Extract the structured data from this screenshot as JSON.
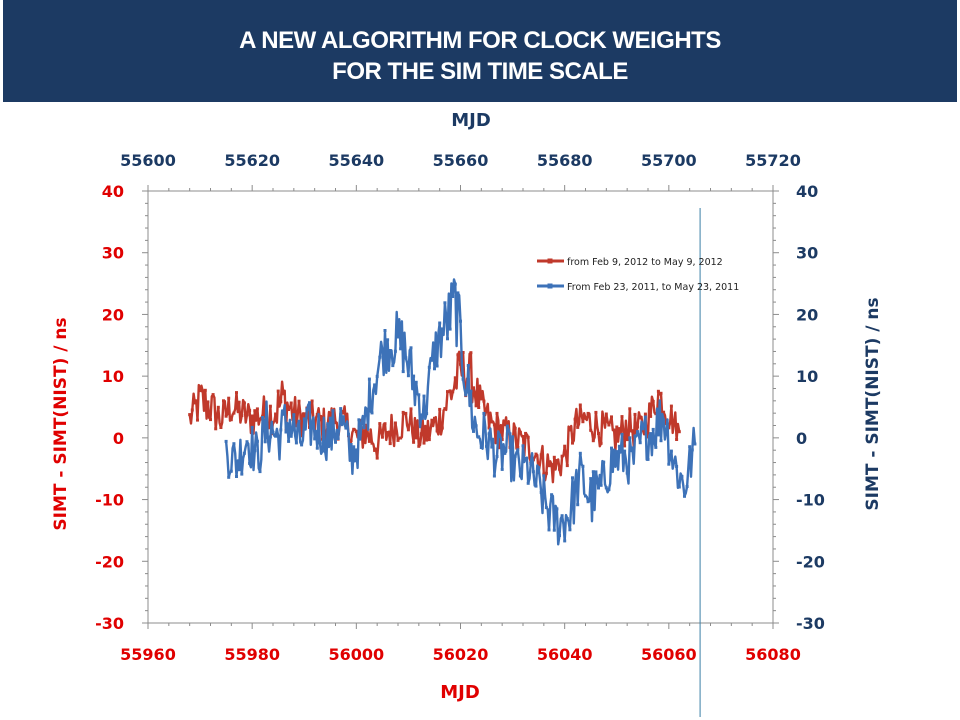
{
  "title": {
    "line1": "A NEW ALGORITHM FOR CLOCK WEIGHTS",
    "line2": "FOR THE SIM TIME SCALE",
    "background": "#1c3a63"
  },
  "chart_data": {
    "type": "line",
    "colors": {
      "red": "#c0392b",
      "blue": "#3d72b8",
      "left_axis_text": "#e00000",
      "right_axis_text": "#1c3a63",
      "cursor_line": "#3b7fa6"
    },
    "bottom_xaxis": {
      "label": "MJD",
      "range": [
        55960,
        56080
      ],
      "ticks": [
        "55960",
        "55980",
        "56000",
        "56020",
        "56040",
        "56060",
        "56080"
      ]
    },
    "top_xaxis": {
      "label": "MJD",
      "range": [
        55600,
        55720
      ],
      "ticks": [
        "55600",
        "55620",
        "55640",
        "55660",
        "55680",
        "55700",
        "55720"
      ]
    },
    "left_yaxis": {
      "label": "SIMT - SIMT(NIST) / ns",
      "range": [
        -30,
        40
      ],
      "ticks": [
        "40",
        "30",
        "20",
        "10",
        "0",
        "-10",
        "-20",
        "-30"
      ]
    },
    "right_yaxis": {
      "label": "SIMT - SIMT(NIST) / ns",
      "range": [
        -30,
        40
      ],
      "ticks": [
        "40",
        "30",
        "20",
        "10",
        "0",
        "-10",
        "-20",
        "-30"
      ]
    },
    "cursor_line_x_bottom": 56066,
    "legend": {
      "placement": "top-right"
    },
    "series": [
      {
        "name": "from Feb 9, 2012 to May 9, 2012",
        "axis": "bottom",
        "color": "#c0392b",
        "x": [
          55968,
          55970,
          55972,
          55974,
          55976,
          55978,
          55980,
          55982,
          55984,
          55986,
          55988,
          55990,
          55992,
          55994,
          55996,
          55998,
          56000,
          56002,
          56004,
          56006,
          56008,
          56010,
          56012,
          56014,
          56016,
          56018,
          56020,
          56022,
          56024,
          56026,
          56028,
          56030,
          56032,
          56034,
          56036,
          56038,
          56040,
          56042,
          56044,
          56046,
          56048,
          56050,
          56052,
          56054,
          56056,
          56058,
          56060,
          56062
        ],
        "y": [
          3,
          6,
          5,
          3,
          5,
          4,
          3,
          4,
          4,
          6,
          4,
          3,
          3,
          2,
          3,
          2,
          0,
          1,
          -1,
          1,
          2,
          3,
          0,
          1,
          3,
          7,
          11,
          10,
          5,
          2,
          1,
          0,
          -1,
          -2,
          -4,
          -5,
          -3,
          2,
          3,
          2,
          1,
          0,
          2,
          1,
          3,
          7,
          4,
          1
        ],
        "spread": [
          2.5,
          4,
          3.5,
          3,
          3,
          3,
          3,
          3,
          3.5,
          5,
          3,
          3,
          3,
          3,
          3,
          3,
          3,
          3,
          3,
          3,
          3,
          3,
          2.5,
          3,
          3,
          4,
          4,
          4,
          3,
          3,
          3,
          3,
          3,
          3,
          3,
          3,
          3,
          3,
          3,
          3,
          3,
          3,
          3,
          3,
          3,
          3,
          3,
          2
        ]
      },
      {
        "name": "From Feb 23, 2011, to May 23, 2011",
        "axis": "top",
        "color": "#3d72b8",
        "x": [
          55615,
          55617,
          55619,
          55621,
          55623,
          55625,
          55627,
          55629,
          55631,
          55633,
          55635,
          55637,
          55639,
          55641,
          55643,
          55645,
          55647,
          55649,
          55651,
          55653,
          55655,
          55657,
          55659,
          55661,
          55663,
          55665,
          55667,
          55669,
          55671,
          55673,
          55675,
          55677,
          55679,
          55681,
          55683,
          55685,
          55687,
          55689,
          55691,
          55693,
          55695,
          55697,
          55699,
          55701,
          55703,
          55705
        ],
        "y": [
          -2,
          -4,
          0,
          -3,
          2,
          0,
          3,
          -1,
          2,
          1,
          0,
          3,
          -3,
          0,
          8,
          14,
          16,
          15,
          9,
          4,
          14,
          18,
          22,
          10,
          1,
          0,
          -3,
          -2,
          -5,
          -5,
          -8,
          -12,
          -14,
          -12,
          -6,
          -10,
          -8,
          -4,
          -3,
          -4,
          0,
          1,
          4,
          -4,
          -8,
          -1
        ],
        "spread": [
          4,
          4,
          4,
          4,
          5,
          4,
          5,
          4,
          4,
          4,
          4,
          4,
          4,
          4,
          4,
          4,
          5,
          5,
          5,
          4,
          4,
          5,
          6,
          5,
          5,
          4,
          4,
          4,
          4,
          4,
          4,
          4,
          4,
          5,
          4,
          5,
          4,
          4,
          4,
          4,
          4,
          4,
          5,
          4,
          4,
          4
        ]
      }
    ]
  }
}
